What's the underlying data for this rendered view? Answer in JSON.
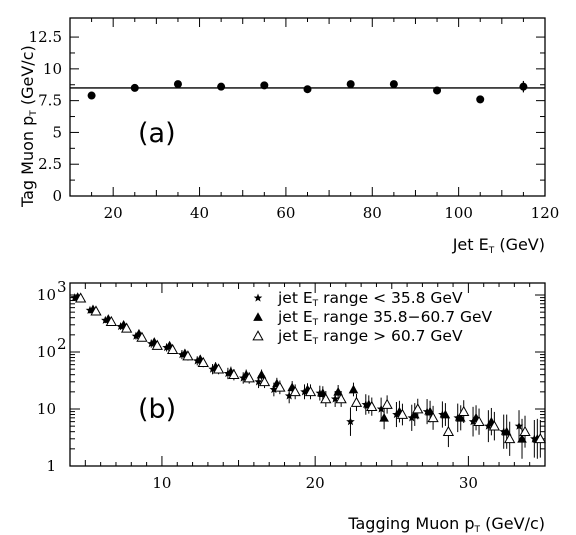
{
  "chart_data": [
    {
      "type": "scatter",
      "panel_label": "(a)",
      "xlabel": {
        "main": "Jet E",
        "sub": "T",
        "rest": " (GeV)"
      },
      "ylabel": {
        "main": "Tag Muon p",
        "sub": "T",
        "rest": " (GeV/c)"
      },
      "xlim": [
        10,
        120
      ],
      "ylim": [
        0,
        14
      ],
      "yscale": "linear",
      "xticks": [
        20,
        40,
        60,
        80,
        100,
        120
      ],
      "yticks": [
        0,
        2.5,
        5,
        7.5,
        10,
        12.5
      ],
      "xtick_labels": [
        "20",
        "40",
        "60",
        "80",
        "100",
        "120"
      ],
      "ytick_labels": [
        "0",
        "2.5",
        "5",
        "7.5",
        "10",
        "12.5"
      ],
      "fit_line": {
        "value": 8.5
      },
      "series": [
        {
          "marker": "circle",
          "x": [
            15,
            25,
            35,
            45,
            55,
            65,
            75,
            85,
            95,
            105,
            115
          ],
          "y": [
            7.9,
            8.5,
            8.8,
            8.6,
            8.7,
            8.4,
            8.8,
            8.8,
            8.3,
            7.6,
            8.6
          ],
          "err": [
            0.15,
            0.12,
            0.12,
            0.12,
            0.12,
            0.15,
            0.15,
            0.15,
            0.2,
            0.3,
            0.45
          ]
        }
      ]
    },
    {
      "type": "scatter",
      "panel_label": "(b)",
      "xlabel": {
        "main": "Tagging Muon p",
        "sub": "T",
        "rest": " (GeV/c)"
      },
      "xlim": [
        4,
        35
      ],
      "ylim": [
        1,
        1000
      ],
      "yscale": "log",
      "xticks": [
        10,
        20,
        30
      ],
      "xtick_labels": [
        "10",
        "20",
        "30"
      ],
      "yticks": [
        1,
        10,
        100,
        1000
      ],
      "ytick_labels": [
        {
          "base": "1",
          "exp": ""
        },
        {
          "base": "10",
          "exp": ""
        },
        {
          "base": "10",
          "exp": "2"
        },
        {
          "base": "10",
          "exp": "3"
        }
      ],
      "legend": {
        "position": "top-right",
        "entries": [
          {
            "marker": "star",
            "pre": "jet E",
            "sub": "T",
            "post": " range < 35.8 GeV"
          },
          {
            "marker": "filled-triangle",
            "pre": "jet E",
            "sub": "T",
            "post": " range 35.8−60.7 GeV"
          },
          {
            "marker": "open-triangle",
            "pre": "jet E",
            "sub": "T",
            "post": " range > 60.7 GeV"
          }
        ]
      },
      "series": [
        {
          "marker": "star",
          "x": [
            4.5,
            5.5,
            6.5,
            7.5,
            8.5,
            9.5,
            10.5,
            11.5,
            12.5,
            13.5,
            14.5,
            15.5,
            16.5,
            17.5,
            18.5,
            19.5,
            20.5,
            21.5,
            22.5,
            23.5,
            24.5,
            25.5,
            26.5,
            27.5,
            28.5,
            29.5,
            30.5,
            31.5,
            32.5,
            33.5,
            34.5
          ],
          "y": [
            900,
            540,
            360,
            280,
            190,
            140,
            120,
            90,
            70,
            50,
            42,
            35,
            30,
            22,
            17,
            20,
            19,
            15,
            6,
            12,
            10,
            8,
            7,
            9,
            8,
            7,
            6,
            5,
            4,
            5,
            3
          ],
          "err": [
            0.04,
            0.05,
            0.05,
            0.06,
            0.06,
            0.07,
            0.07,
            0.08,
            0.08,
            0.09,
            0.1,
            0.1,
            0.11,
            0.12,
            0.13,
            0.13,
            0.13,
            0.14,
            0.25,
            0.18,
            0.2,
            0.22,
            0.23,
            0.22,
            0.23,
            0.25,
            0.26,
            0.28,
            0.3,
            0.28,
            0.33
          ]
        },
        {
          "marker": "filled-triangle",
          "x": [
            4.5,
            5.5,
            6.5,
            7.5,
            8.5,
            9.5,
            10.5,
            11.5,
            12.5,
            13.5,
            14.5,
            15.5,
            16.5,
            17.5,
            18.5,
            19.5,
            20.5,
            21.5,
            22.5,
            23.5,
            24.5,
            25.5,
            26.5,
            27.5,
            28.5,
            29.5,
            30.5,
            31.5,
            32.5,
            33.5,
            34.5
          ],
          "y": [
            920,
            560,
            380,
            300,
            210,
            150,
            130,
            95,
            75,
            55,
            45,
            40,
            40,
            28,
            24,
            22,
            19,
            20,
            22,
            12,
            7,
            9,
            8,
            9,
            8,
            7,
            7,
            6,
            4,
            3,
            3
          ],
          "err": [
            0.03,
            0.04,
            0.04,
            0.05,
            0.05,
            0.06,
            0.06,
            0.07,
            0.07,
            0.08,
            0.09,
            0.09,
            0.09,
            0.1,
            0.11,
            0.11,
            0.12,
            0.12,
            0.12,
            0.16,
            0.2,
            0.19,
            0.2,
            0.19,
            0.2,
            0.22,
            0.22,
            0.24,
            0.3,
            0.35,
            0.35
          ]
        },
        {
          "marker": "open-triangle",
          "x": [
            4.5,
            5.5,
            6.5,
            7.5,
            8.5,
            9.5,
            10.5,
            11.5,
            12.5,
            13.5,
            14.5,
            15.5,
            16.5,
            17.5,
            18.5,
            19.5,
            20.5,
            21.5,
            22.5,
            23.5,
            24.5,
            25.5,
            26.5,
            27.5,
            28.5,
            29.5,
            30.5,
            31.5,
            32.5,
            33.5,
            34.5
          ],
          "y": [
            880,
            520,
            340,
            260,
            180,
            130,
            110,
            85,
            65,
            50,
            40,
            35,
            30,
            24,
            20,
            20,
            15,
            15,
            13,
            11,
            12,
            8,
            10,
            7,
            4,
            9,
            6,
            5,
            3,
            4,
            3
          ],
          "err": [
            0.04,
            0.05,
            0.05,
            0.06,
            0.06,
            0.07,
            0.07,
            0.08,
            0.08,
            0.09,
            0.1,
            0.1,
            0.11,
            0.12,
            0.13,
            0.13,
            0.14,
            0.14,
            0.15,
            0.16,
            0.16,
            0.19,
            0.18,
            0.21,
            0.27,
            0.2,
            0.23,
            0.25,
            0.3,
            0.28,
            0.33
          ]
        }
      ]
    }
  ]
}
